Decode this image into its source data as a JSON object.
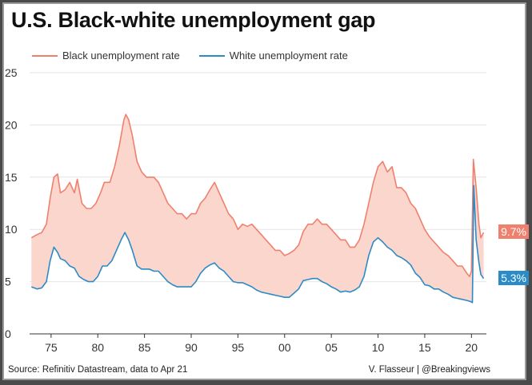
{
  "title": "U.S. Black-white unemployment gap",
  "source": "Source: Refinitiv Datastream, data to Apr 21",
  "credit": "V. Flasseur | @Breakingviews",
  "colors": {
    "black": "#f0806e",
    "white": "#2a8bc6",
    "fill": "#fbd6cd",
    "grid": "#e4e4e4"
  },
  "chart_data": {
    "type": "line",
    "title": "U.S. Black-white unemployment gap",
    "ylim": [
      0,
      25
    ],
    "yticks": [
      0,
      5,
      10,
      15,
      20,
      25
    ],
    "xlim": [
      1972.7,
      2021.6
    ],
    "xticks": [
      {
        "x": 1975,
        "label": "75"
      },
      {
        "x": 1980,
        "label": "80"
      },
      {
        "x": 1985,
        "label": "85"
      },
      {
        "x": 1990,
        "label": "90"
      },
      {
        "x": 1995,
        "label": "95"
      },
      {
        "x": 2000,
        "label": "00"
      },
      {
        "x": 2005,
        "label": "05"
      },
      {
        "x": 2010,
        "label": "10"
      },
      {
        "x": 2015,
        "label": "15"
      },
      {
        "x": 2020,
        "label": "20"
      }
    ],
    "legend_position": "top",
    "gap_shaded": true,
    "series": [
      {
        "name": "Black unemployment rate",
        "end_label": "9.7%",
        "points": [
          [
            1972.9,
            9.2
          ],
          [
            1973.5,
            9.5
          ],
          [
            1974.0,
            9.7
          ],
          [
            1974.5,
            10.5
          ],
          [
            1974.9,
            13.0
          ],
          [
            1975.3,
            15.0
          ],
          [
            1975.7,
            15.3
          ],
          [
            1976.0,
            13.5
          ],
          [
            1976.5,
            13.8
          ],
          [
            1977.0,
            14.5
          ],
          [
            1977.5,
            13.5
          ],
          [
            1977.8,
            14.8
          ],
          [
            1978.3,
            12.5
          ],
          [
            1978.8,
            12.0
          ],
          [
            1979.3,
            12.0
          ],
          [
            1979.8,
            12.5
          ],
          [
            1980.3,
            13.5
          ],
          [
            1980.7,
            14.5
          ],
          [
            1981.3,
            14.5
          ],
          [
            1981.8,
            16.0
          ],
          [
            1982.3,
            18.0
          ],
          [
            1982.8,
            20.5
          ],
          [
            1983.0,
            21.0
          ],
          [
            1983.3,
            20.5
          ],
          [
            1983.7,
            19.0
          ],
          [
            1984.2,
            16.5
          ],
          [
            1984.7,
            15.5
          ],
          [
            1985.2,
            15.0
          ],
          [
            1986.0,
            15.0
          ],
          [
            1986.5,
            14.5
          ],
          [
            1987.0,
            13.5
          ],
          [
            1987.5,
            12.5
          ],
          [
            1988.0,
            12.0
          ],
          [
            1988.5,
            11.5
          ],
          [
            1989.0,
            11.5
          ],
          [
            1989.5,
            11.0
          ],
          [
            1990.0,
            11.5
          ],
          [
            1990.5,
            11.5
          ],
          [
            1991.0,
            12.5
          ],
          [
            1991.5,
            13.0
          ],
          [
            1992.0,
            13.8
          ],
          [
            1992.5,
            14.5
          ],
          [
            1993.0,
            13.5
          ],
          [
            1993.5,
            12.5
          ],
          [
            1994.0,
            11.5
          ],
          [
            1994.5,
            11.0
          ],
          [
            1995.0,
            10.0
          ],
          [
            1995.5,
            10.5
          ],
          [
            1996.0,
            10.3
          ],
          [
            1996.5,
            10.5
          ],
          [
            1997.0,
            10.0
          ],
          [
            1997.5,
            9.5
          ],
          [
            1998.0,
            9.0
          ],
          [
            1998.5,
            8.5
          ],
          [
            1999.0,
            8.0
          ],
          [
            1999.5,
            8.0
          ],
          [
            2000.0,
            7.5
          ],
          [
            2000.5,
            7.7
          ],
          [
            2001.0,
            8.0
          ],
          [
            2001.5,
            8.5
          ],
          [
            2002.0,
            9.8
          ],
          [
            2002.5,
            10.5
          ],
          [
            2003.0,
            10.5
          ],
          [
            2003.5,
            11.0
          ],
          [
            2004.0,
            10.5
          ],
          [
            2004.5,
            10.5
          ],
          [
            2005.0,
            10.0
          ],
          [
            2005.5,
            9.5
          ],
          [
            2006.0,
            9.0
          ],
          [
            2006.5,
            9.0
          ],
          [
            2007.0,
            8.3
          ],
          [
            2007.5,
            8.3
          ],
          [
            2008.0,
            9.0
          ],
          [
            2008.5,
            10.5
          ],
          [
            2009.0,
            12.5
          ],
          [
            2009.5,
            14.5
          ],
          [
            2010.0,
            16.0
          ],
          [
            2010.5,
            16.5
          ],
          [
            2011.0,
            15.5
          ],
          [
            2011.5,
            16.0
          ],
          [
            2012.0,
            14.0
          ],
          [
            2012.5,
            14.0
          ],
          [
            2013.0,
            13.5
          ],
          [
            2013.5,
            12.5
          ],
          [
            2014.0,
            12.0
          ],
          [
            2014.5,
            11.0
          ],
          [
            2015.0,
            10.0
          ],
          [
            2015.5,
            9.3
          ],
          [
            2016.0,
            8.8
          ],
          [
            2016.5,
            8.3
          ],
          [
            2017.0,
            7.8
          ],
          [
            2017.5,
            7.5
          ],
          [
            2018.0,
            7.0
          ],
          [
            2018.5,
            6.5
          ],
          [
            2019.0,
            6.5
          ],
          [
            2019.5,
            5.8
          ],
          [
            2019.8,
            5.5
          ],
          [
            2020.0,
            6.0
          ],
          [
            2020.2,
            16.7
          ],
          [
            2020.5,
            14.0
          ],
          [
            2020.8,
            10.5
          ],
          [
            2021.0,
            9.2
          ],
          [
            2021.3,
            9.7
          ]
        ]
      },
      {
        "name": "White unemployment rate",
        "end_label": "5.3%",
        "points": [
          [
            1972.9,
            4.5
          ],
          [
            1973.5,
            4.3
          ],
          [
            1974.0,
            4.4
          ],
          [
            1974.5,
            5.0
          ],
          [
            1974.9,
            7.0
          ],
          [
            1975.3,
            8.3
          ],
          [
            1975.7,
            7.8
          ],
          [
            1976.0,
            7.2
          ],
          [
            1976.5,
            7.0
          ],
          [
            1977.0,
            6.5
          ],
          [
            1977.5,
            6.3
          ],
          [
            1978.0,
            5.5
          ],
          [
            1978.5,
            5.2
          ],
          [
            1979.0,
            5.0
          ],
          [
            1979.5,
            5.0
          ],
          [
            1980.0,
            5.5
          ],
          [
            1980.5,
            6.5
          ],
          [
            1981.0,
            6.5
          ],
          [
            1981.5,
            7.0
          ],
          [
            1982.0,
            8.0
          ],
          [
            1982.5,
            9.0
          ],
          [
            1982.9,
            9.7
          ],
          [
            1983.3,
            9.0
          ],
          [
            1983.7,
            8.0
          ],
          [
            1984.2,
            6.5
          ],
          [
            1984.7,
            6.2
          ],
          [
            1985.5,
            6.2
          ],
          [
            1986.0,
            6.0
          ],
          [
            1986.5,
            6.0
          ],
          [
            1987.0,
            5.5
          ],
          [
            1987.5,
            5.0
          ],
          [
            1988.0,
            4.7
          ],
          [
            1988.5,
            4.5
          ],
          [
            1989.0,
            4.5
          ],
          [
            1989.5,
            4.5
          ],
          [
            1990.0,
            4.5
          ],
          [
            1990.5,
            5.0
          ],
          [
            1991.0,
            5.8
          ],
          [
            1991.5,
            6.3
          ],
          [
            1992.0,
            6.6
          ],
          [
            1992.5,
            6.8
          ],
          [
            1993.0,
            6.3
          ],
          [
            1993.5,
            6.0
          ],
          [
            1994.0,
            5.5
          ],
          [
            1994.5,
            5.0
          ],
          [
            1995.0,
            4.9
          ],
          [
            1995.5,
            4.9
          ],
          [
            1996.0,
            4.7
          ],
          [
            1996.5,
            4.5
          ],
          [
            1997.0,
            4.2
          ],
          [
            1997.5,
            4.0
          ],
          [
            1998.0,
            3.9
          ],
          [
            1998.5,
            3.8
          ],
          [
            1999.0,
            3.7
          ],
          [
            1999.5,
            3.6
          ],
          [
            2000.0,
            3.5
          ],
          [
            2000.5,
            3.5
          ],
          [
            2001.0,
            3.9
          ],
          [
            2001.5,
            4.3
          ],
          [
            2002.0,
            5.1
          ],
          [
            2002.5,
            5.2
          ],
          [
            2003.0,
            5.3
          ],
          [
            2003.5,
            5.3
          ],
          [
            2004.0,
            5.0
          ],
          [
            2004.5,
            4.8
          ],
          [
            2005.0,
            4.5
          ],
          [
            2005.5,
            4.3
          ],
          [
            2006.0,
            4.0
          ],
          [
            2006.5,
            4.1
          ],
          [
            2007.0,
            4.0
          ],
          [
            2007.5,
            4.2
          ],
          [
            2008.0,
            4.5
          ],
          [
            2008.5,
            5.5
          ],
          [
            2009.0,
            7.5
          ],
          [
            2009.5,
            8.8
          ],
          [
            2010.0,
            9.2
          ],
          [
            2010.5,
            8.8
          ],
          [
            2011.0,
            8.3
          ],
          [
            2011.5,
            8.0
          ],
          [
            2012.0,
            7.5
          ],
          [
            2012.5,
            7.3
          ],
          [
            2013.0,
            7.0
          ],
          [
            2013.5,
            6.6
          ],
          [
            2014.0,
            5.8
          ],
          [
            2014.5,
            5.4
          ],
          [
            2015.0,
            4.7
          ],
          [
            2015.5,
            4.6
          ],
          [
            2016.0,
            4.3
          ],
          [
            2016.5,
            4.3
          ],
          [
            2017.0,
            4.0
          ],
          [
            2017.5,
            3.8
          ],
          [
            2018.0,
            3.5
          ],
          [
            2018.5,
            3.4
          ],
          [
            2019.0,
            3.3
          ],
          [
            2019.5,
            3.2
          ],
          [
            2019.9,
            3.1
          ],
          [
            2020.1,
            3.0
          ],
          [
            2020.25,
            14.2
          ],
          [
            2020.5,
            9.0
          ],
          [
            2020.8,
            6.8
          ],
          [
            2021.0,
            5.7
          ],
          [
            2021.3,
            5.3
          ]
        ]
      }
    ]
  }
}
